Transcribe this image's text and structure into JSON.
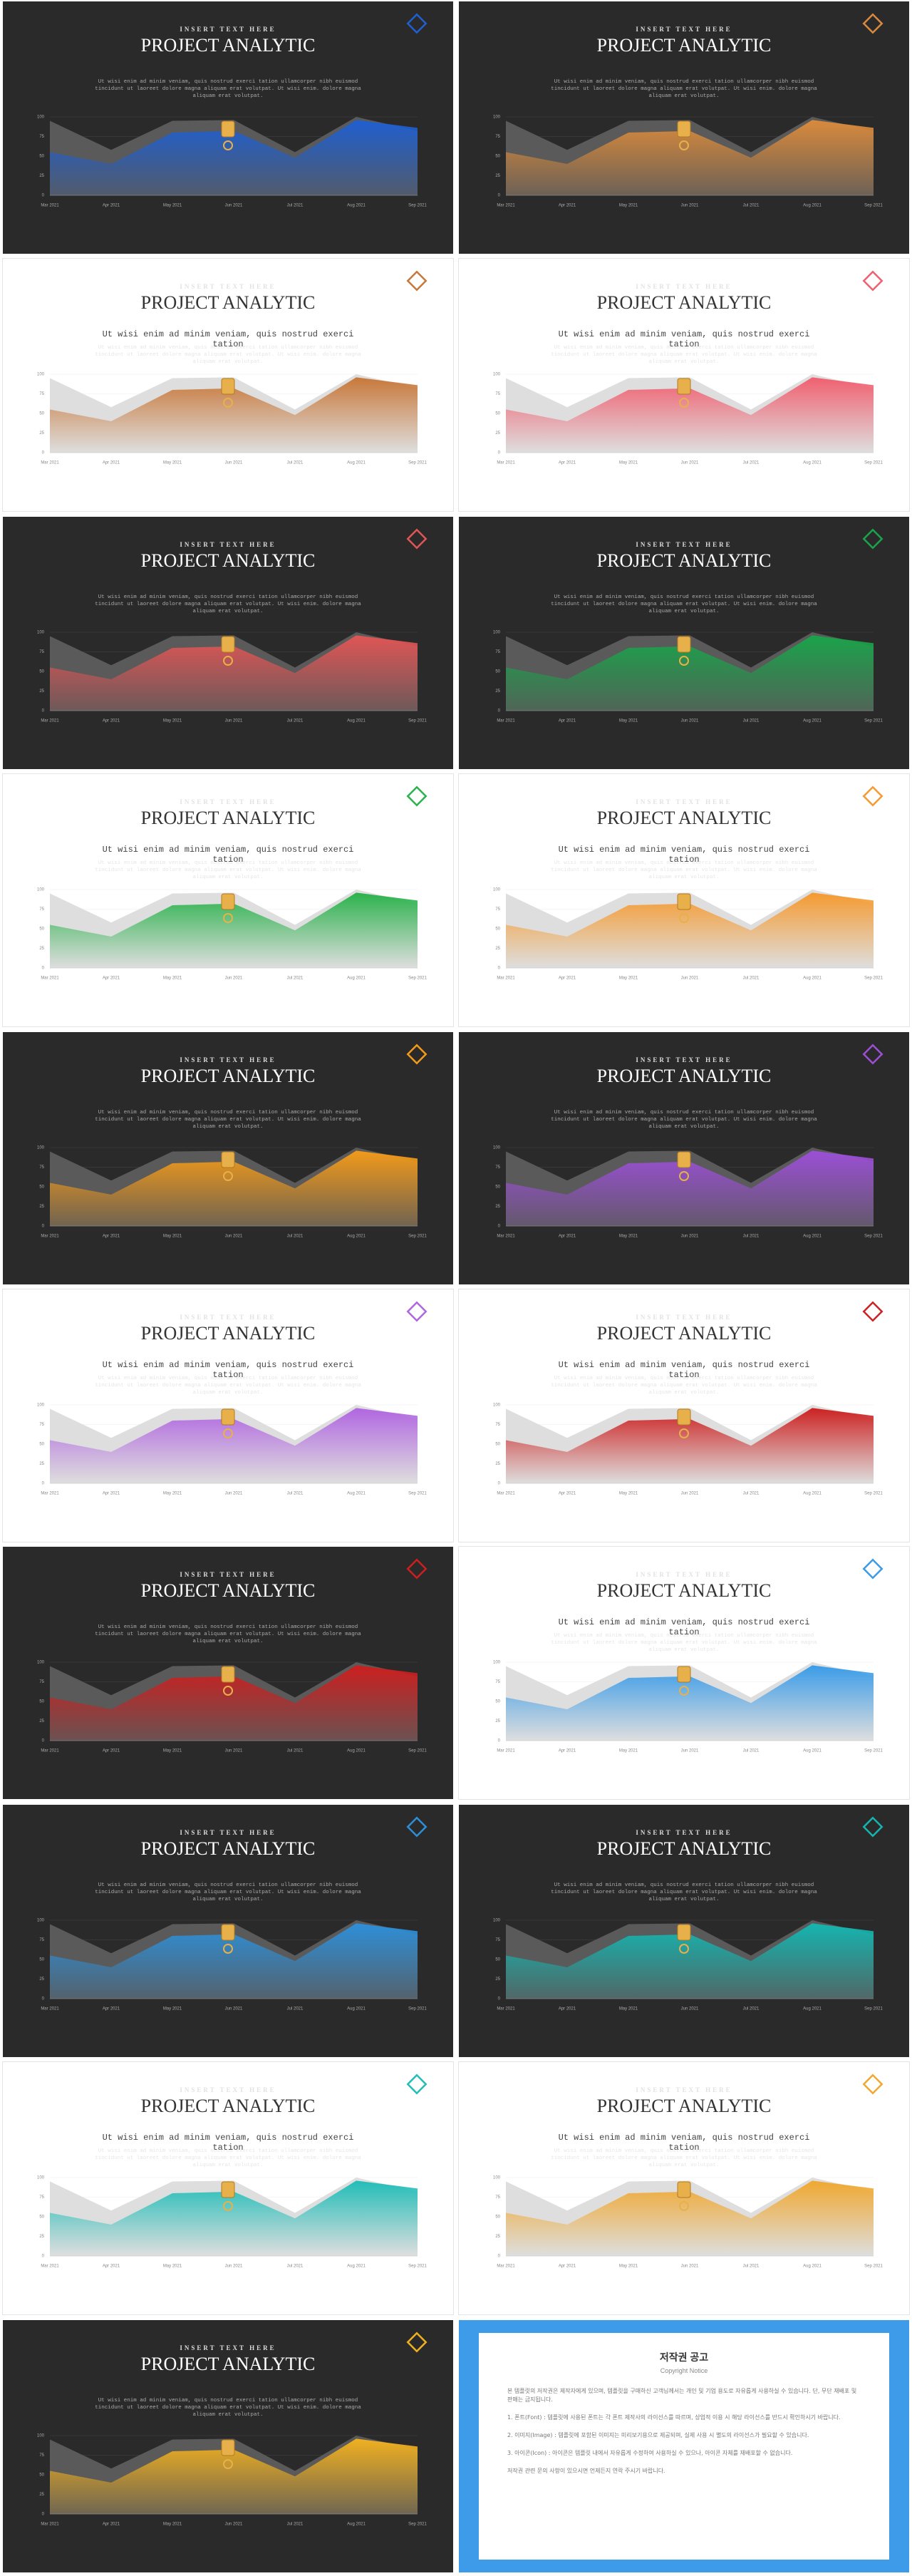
{
  "chart_data": {
    "type": "area",
    "categories": [
      "Mar 2021",
      "Apr 2021",
      "May 2021",
      "Jun 2021",
      "Jul 2021",
      "Aug 2021",
      "Sep 2021"
    ],
    "series": [
      {
        "values": [
          95,
          58,
          95,
          96,
          55,
          100,
          82
        ]
      },
      {
        "values": [
          55,
          40,
          80,
          82,
          48,
          96,
          86
        ]
      }
    ],
    "ylim": [
      0,
      100
    ],
    "yticks": [
      0,
      25,
      50,
      75,
      100
    ]
  },
  "kicker": "INSERT TEXT HERE",
  "title": "PROJECT ANALYTIC",
  "body_lines": [
    "Ut wisi enim ad minim veniam, quis nostrud exerci tation ullamcorper nibh euismod",
    "tincidunt ut laoreet dolore magna aliquam erat volutpat. Ut wisi enim. dolore  magna",
    "aliquam erat volutpat."
  ],
  "lead_lines": [
    "Ut wisi enim ad minim veniam, quis nostrud exerci",
    "tation"
  ],
  "slides": [
    {
      "theme": "dark",
      "color": "#1f5fd0"
    },
    {
      "theme": "dark",
      "color": "#d98a3c"
    },
    {
      "theme": "light",
      "color": "#c8783a"
    },
    {
      "theme": "light",
      "color": "#f06070"
    },
    {
      "theme": "dark",
      "color": "#e05555"
    },
    {
      "theme": "dark",
      "color": "#1aa34a"
    },
    {
      "theme": "light",
      "color": "#2bb24c"
    },
    {
      "theme": "light",
      "color": "#f59a30"
    },
    {
      "theme": "dark",
      "color": "#f29a1a"
    },
    {
      "theme": "dark",
      "color": "#9b4fd6"
    },
    {
      "theme": "light",
      "color": "#b066e0"
    },
    {
      "theme": "light",
      "color": "#cc2222"
    },
    {
      "theme": "dark",
      "color": "#cc1f1f"
    },
    {
      "theme": "light",
      "color": "#3a9ce8"
    },
    {
      "theme": "dark",
      "color": "#2e8fd8"
    },
    {
      "theme": "dark",
      "color": "#15b5b0"
    },
    {
      "theme": "light",
      "color": "#22bdb8"
    },
    {
      "theme": "light",
      "color": "#f0a830"
    },
    {
      "theme": "dark",
      "color": "#f0b020"
    }
  ],
  "notice": {
    "title": "저작권 공고",
    "subtitle": "Copyright Notice",
    "paragraphs": [
      "본 템플릿의 저작권은 제작자에게 있으며, 템플릿을 구매하신 고객님께서는 개인 및 기업 용도로 자유롭게 사용하실 수 있습니다. 단, 무단 재배포 및 판매는 금지됩니다.",
      "1. 폰트(Font) : 템플릿에 사용된 폰트는 각 폰트 제작사의 라이선스를 따르며, 상업적 이용 시 해당 라이선스를 반드시 확인하시기 바랍니다.",
      "2. 이미지(Image) : 템플릿에 포함된 이미지는 미리보기용으로 제공되며, 실제 사용 시 별도의 라이선스가 필요할 수 있습니다.",
      "3. 아이콘(Icon) : 아이콘은 템플릿 내에서 자유롭게 수정하여 사용하실 수 있으나, 아이콘 자체를 재배포할 수 없습니다.",
      "저작권 관련 문의 사항이 있으시면 언제든지 연락 주시기 바랍니다."
    ]
  }
}
